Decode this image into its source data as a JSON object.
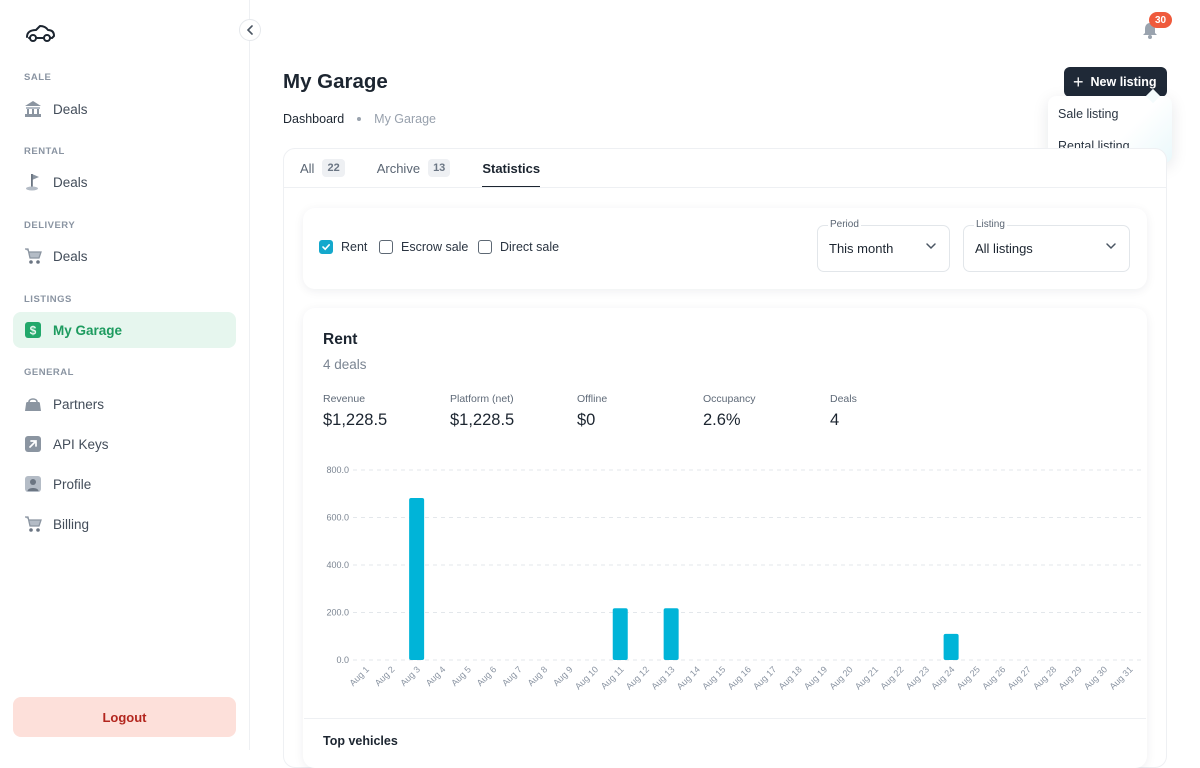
{
  "sidebar": {
    "sections": [
      {
        "label": "SALE",
        "items": [
          {
            "label": "Deals",
            "icon": "bank-icon"
          }
        ]
      },
      {
        "label": "RENTAL",
        "items": [
          {
            "label": "Deals",
            "icon": "golf-flag-icon"
          }
        ]
      },
      {
        "label": "DELIVERY",
        "items": [
          {
            "label": "Deals",
            "icon": "cart-icon"
          }
        ]
      },
      {
        "label": "LISTINGS",
        "items": [
          {
            "label": "My Garage",
            "icon": "dollar-icon",
            "active": true
          }
        ]
      },
      {
        "label": "GENERAL",
        "items": [
          {
            "label": "Partners",
            "icon": "bag-icon"
          },
          {
            "label": "API Keys",
            "icon": "arrow-up-right-icon"
          },
          {
            "label": "Profile",
            "icon": "user-icon"
          },
          {
            "label": "Billing",
            "icon": "cart-icon"
          }
        ]
      }
    ],
    "logout_label": "Logout"
  },
  "header": {
    "notification_count": "30",
    "title": "My Garage",
    "breadcrumb": [
      "Dashboard",
      "My Garage"
    ],
    "new_listing_label": "New listing",
    "dropdown_options": [
      "Sale listing",
      "Rental listing"
    ]
  },
  "tabs": [
    {
      "label": "All",
      "count": "22"
    },
    {
      "label": "Archive",
      "count": "13"
    },
    {
      "label": "Statistics",
      "count": null,
      "active": true
    }
  ],
  "filters": {
    "checkboxes": [
      {
        "label": "Rent",
        "checked": true
      },
      {
        "label": "Escrow sale",
        "checked": false
      },
      {
        "label": "Direct sale",
        "checked": false
      }
    ],
    "period": {
      "label": "Period",
      "value": "This month"
    },
    "listing": {
      "label": "Listing",
      "value": "All listings"
    }
  },
  "stats": {
    "title": "Rent",
    "subtitle": "4 deals",
    "metrics": [
      {
        "label": "Revenue",
        "value": "$1,228.5"
      },
      {
        "label": "Platform (net)",
        "value": "$1,228.5"
      },
      {
        "label": "Offline",
        "value": "$0"
      },
      {
        "label": "Occupancy",
        "value": "2.6%"
      },
      {
        "label": "Deals",
        "value": "4"
      }
    ],
    "top_vehicles_label": "Top vehicles"
  },
  "colors": {
    "accent": "#14a8cc",
    "active_nav": "#1d9b5f",
    "dark_button": "#1f2937"
  },
  "chart_data": {
    "type": "bar",
    "categories": [
      "Aug 1",
      "Aug 2",
      "Aug 3",
      "Aug 4",
      "Aug 5",
      "Aug 6",
      "Aug 7",
      "Aug 8",
      "Aug 9",
      "Aug 10",
      "Aug 11",
      "Aug 12",
      "Aug 13",
      "Aug 14",
      "Aug 15",
      "Aug 16",
      "Aug 17",
      "Aug 18",
      "Aug 19",
      "Aug 20",
      "Aug 21",
      "Aug 22",
      "Aug 23",
      "Aug 24",
      "Aug 25",
      "Aug 26",
      "Aug 27",
      "Aug 28",
      "Aug 29",
      "Aug 30",
      "Aug 31"
    ],
    "values": [
      0,
      0,
      682,
      0,
      0,
      0,
      0,
      0,
      0,
      0,
      218,
      0,
      218,
      0,
      0,
      0,
      0,
      0,
      0,
      0,
      0,
      0,
      0,
      110,
      0,
      0,
      0,
      0,
      0,
      0,
      0
    ],
    "yticks": [
      "800.0",
      "600.0",
      "400.0",
      "200.0",
      "0.0"
    ],
    "ylim": [
      0,
      800
    ],
    "grid": true,
    "color": "#00b4d8"
  }
}
